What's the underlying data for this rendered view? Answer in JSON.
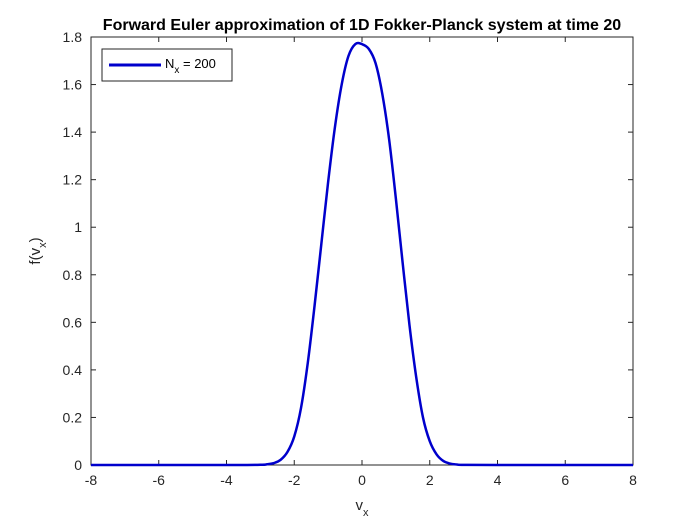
{
  "chart_data": {
    "type": "line",
    "title": "Forward Euler approximation of 1D Fokker-Planck system at time 20",
    "xlabel": {
      "base": "v",
      "sub": "x"
    },
    "ylabel": {
      "prefix": "f(v",
      "sub": "x",
      "suffix": ")"
    },
    "xlim": [
      -8,
      8
    ],
    "ylim": [
      0,
      1.8
    ],
    "xticks": [
      -8,
      -6,
      -4,
      -2,
      0,
      2,
      4,
      6,
      8
    ],
    "yticks": [
      0,
      0.2,
      0.4,
      0.6,
      0.8,
      1,
      1.2,
      1.4,
      1.6,
      1.8
    ],
    "grid": false,
    "legend_position": "top-left",
    "series": [
      {
        "name": {
          "base": "N",
          "sub": "x",
          "suffix": " = 200"
        },
        "color": "#0000cc",
        "x": [
          -8,
          -4,
          -3,
          -2.8,
          -2.6,
          -2.4,
          -2.2,
          -2.0,
          -1.8,
          -1.6,
          -1.4,
          -1.2,
          -1.0,
          -0.8,
          -0.6,
          -0.4,
          -0.2,
          0,
          0.2,
          0.4,
          0.6,
          0.8,
          1.0,
          1.2,
          1.4,
          1.6,
          1.8,
          2.0,
          2.2,
          2.4,
          2.6,
          2.8,
          3,
          4,
          8
        ],
        "y": [
          0,
          0,
          0.001,
          0.003,
          0.008,
          0.022,
          0.055,
          0.12,
          0.24,
          0.43,
          0.67,
          0.93,
          1.19,
          1.42,
          1.6,
          1.72,
          1.77,
          1.77,
          1.75,
          1.69,
          1.56,
          1.37,
          1.12,
          0.85,
          0.59,
          0.37,
          0.2,
          0.1,
          0.045,
          0.017,
          0.006,
          0.002,
          0.0005,
          0,
          0
        ]
      }
    ]
  }
}
